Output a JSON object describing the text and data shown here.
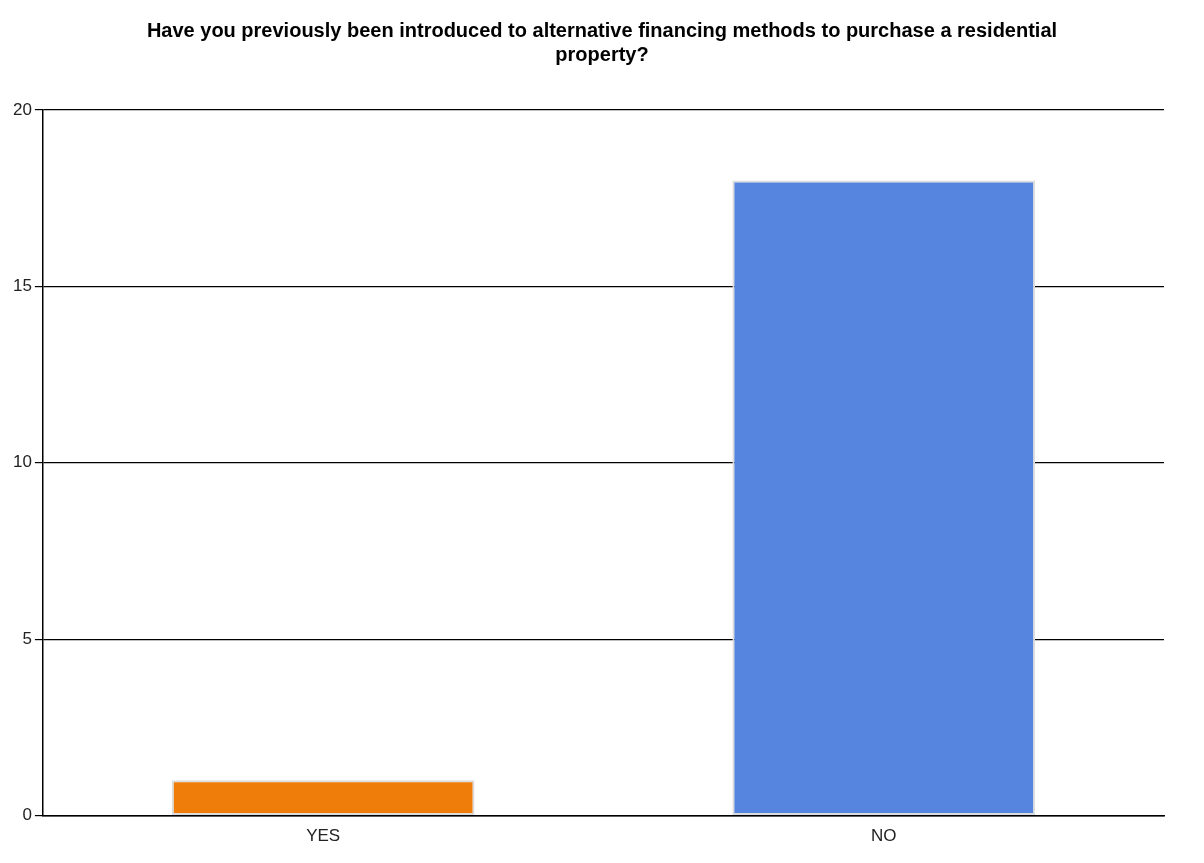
{
  "chart_data": {
    "type": "bar",
    "title": "Have you previously been introduced to alternative financing methods to purchase a residential property?",
    "categories": [
      "YES",
      "NO"
    ],
    "values": [
      1,
      18
    ],
    "colors": [
      "#ee7d0a",
      "#5585de"
    ],
    "ylim": [
      0,
      20
    ],
    "yticks": [
      0,
      5,
      10,
      15,
      20
    ],
    "grid": "y",
    "legend": false
  }
}
